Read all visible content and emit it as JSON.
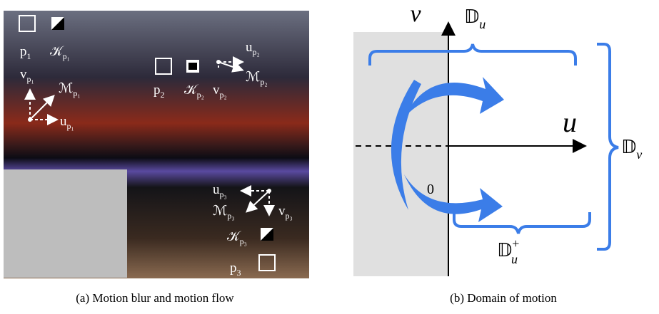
{
  "panel_a": {
    "caption": "(a) Motion blur and motion flow",
    "labels": [
      {
        "base": "p",
        "sub": "1"
      },
      {
        "base": "𝒦",
        "sub": "p₁"
      },
      {
        "base": "v",
        "sub": "p₁"
      },
      {
        "base": "ℳ",
        "sub": "p₁"
      },
      {
        "base": "u",
        "sub": "p₁"
      },
      {
        "base": "p",
        "sub": "2"
      },
      {
        "base": "𝒦",
        "sub": "p₂"
      },
      {
        "base": "v",
        "sub": "p₂"
      },
      {
        "base": "u",
        "sub": "p₂"
      },
      {
        "base": "ℳ",
        "sub": "p₂"
      },
      {
        "base": "u",
        "sub": "p₃"
      },
      {
        "base": "ℳ",
        "sub": "p₃"
      },
      {
        "base": "v",
        "sub": "p₃"
      },
      {
        "base": "𝒦",
        "sub": "p₃"
      },
      {
        "base": "p",
        "sub": "3"
      }
    ]
  },
  "panel_b": {
    "caption": "(b) Domain of motion",
    "v_axis": "v",
    "u_axis": "u",
    "origin": "0",
    "d_u": {
      "base": "𝔻",
      "sub": "u"
    },
    "d_v": {
      "base": "𝔻",
      "sub": "v"
    },
    "d_u_plus": {
      "base": "𝔻",
      "sub": "u",
      "sup": "+"
    }
  }
}
